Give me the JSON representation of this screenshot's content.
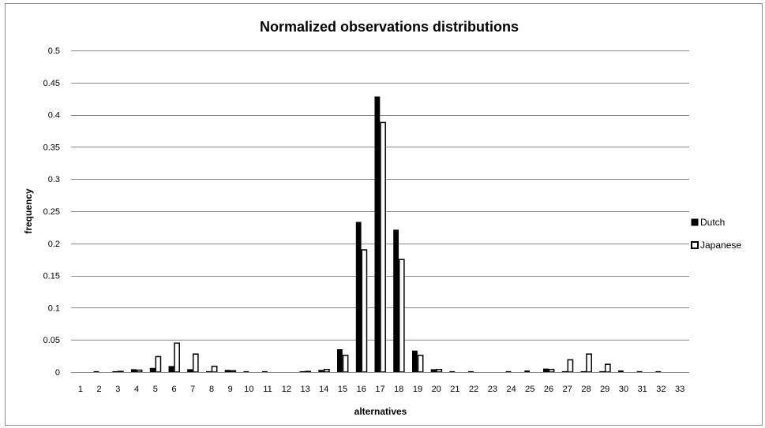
{
  "chart_data": {
    "type": "bar",
    "title": "Normalized observations distributions",
    "xlabel": "alternatives",
    "ylabel": "frequency",
    "ylim": [
      0,
      0.5
    ],
    "ytick_step": 0.05,
    "yticks": [
      "0",
      "0.05",
      "0.1",
      "0.15",
      "0.2",
      "0.25",
      "0.3",
      "0.35",
      "0.4",
      "0.45",
      "0.5"
    ],
    "grid": true,
    "legend_position": "right",
    "categories": [
      "1",
      "2",
      "3",
      "4",
      "5",
      "6",
      "7",
      "8",
      "9",
      "10",
      "11",
      "12",
      "13",
      "14",
      "15",
      "16",
      "17",
      "18",
      "19",
      "20",
      "21",
      "22",
      "23",
      "24",
      "25",
      "26",
      "27",
      "28",
      "29",
      "30",
      "31",
      "32",
      "33"
    ],
    "series": [
      {
        "name": "Dutch",
        "fill": "#000000",
        "values": [
          0,
          0.001,
          0.001,
          0.004,
          0.006,
          0.009,
          0.004,
          0.001,
          0.003,
          0.001,
          0.001,
          0,
          0.001,
          0.003,
          0.035,
          0.233,
          0.428,
          0.221,
          0.033,
          0.004,
          0.001,
          0.001,
          0,
          0.001,
          0.002,
          0.005,
          0.001,
          0.001,
          0.001,
          0.002,
          0.001,
          0.001,
          0
        ]
      },
      {
        "name": "Japanese",
        "fill": "#ffffff",
        "values": [
          0,
          0,
          0.001,
          0.003,
          0.024,
          0.045,
          0.028,
          0.009,
          0.002,
          0,
          0,
          0,
          0.001,
          0.004,
          0.026,
          0.19,
          0.388,
          0.175,
          0.026,
          0.004,
          0,
          0,
          0,
          0,
          0,
          0.004,
          0.019,
          0.028,
          0.012,
          0,
          0,
          0,
          0
        ]
      }
    ]
  }
}
